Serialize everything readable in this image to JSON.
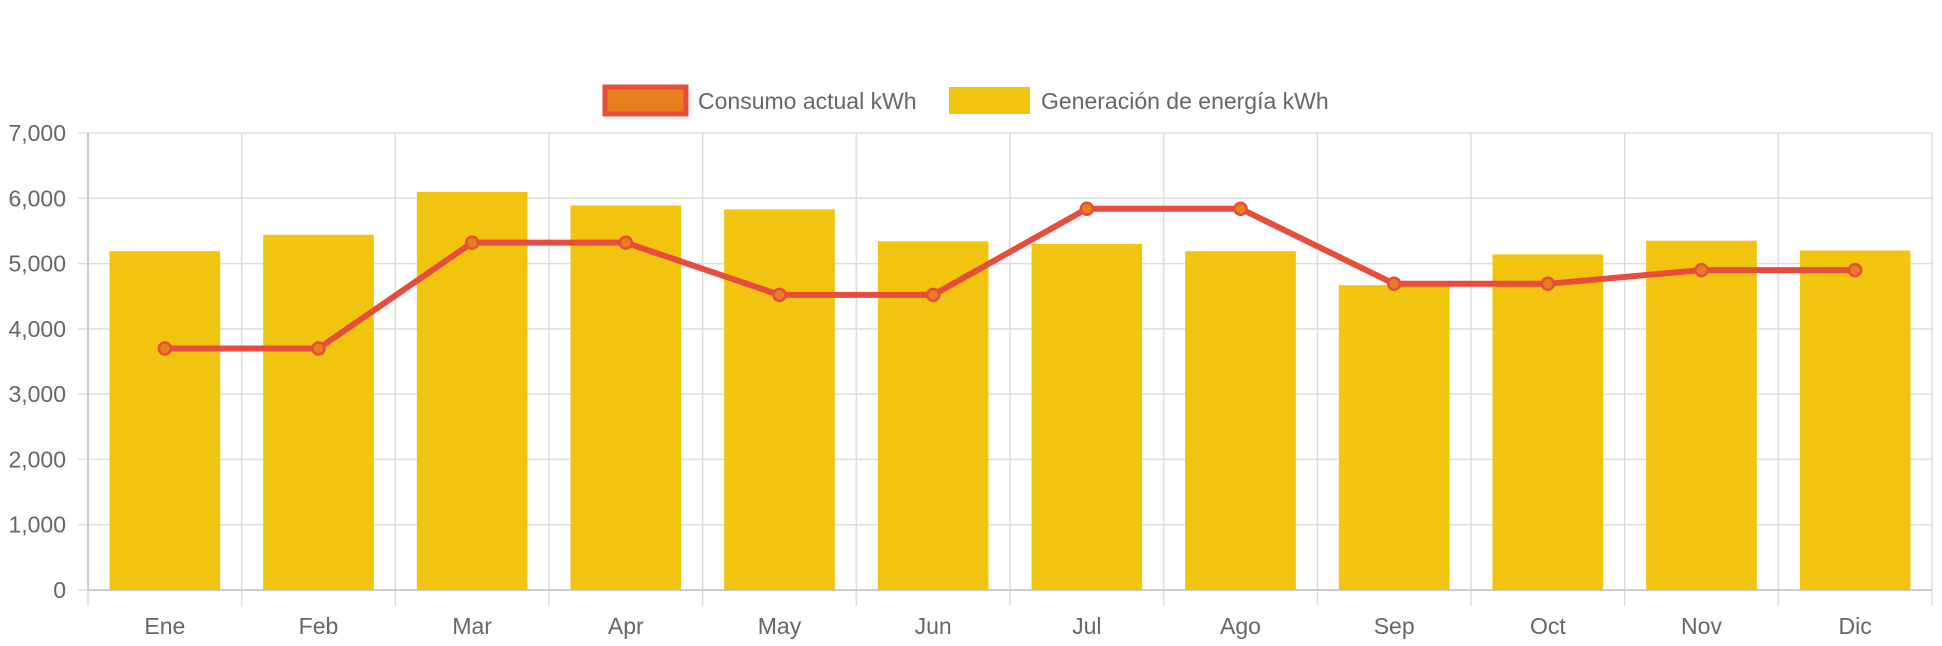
{
  "chart_data": {
    "type": "bar",
    "categories": [
      "Ene",
      "Feb",
      "Mar",
      "Apr",
      "May",
      "Jun",
      "Jul",
      "Ago",
      "Sep",
      "Oct",
      "Nov",
      "Dic"
    ],
    "series": [
      {
        "name": "Consumo actual kWh",
        "type": "line",
        "values": [
          3700,
          3700,
          5320,
          5320,
          4520,
          4520,
          5840,
          5840,
          4690,
          4690,
          4900,
          4900
        ],
        "color": "#e74c3c",
        "point_color": "#e67e22"
      },
      {
        "name": "Generación de energía kWh",
        "type": "bar",
        "values": [
          5190,
          5440,
          6100,
          5890,
          5830,
          5340,
          5300,
          5190,
          4670,
          5140,
          5350,
          5200
        ],
        "color": "#f1c40f"
      }
    ],
    "ylim": [
      0,
      7000
    ],
    "yticks": [
      "0",
      "1,000",
      "2,000",
      "3,000",
      "4,000",
      "5,000",
      "6,000",
      "7,000"
    ],
    "grid": true,
    "legend_position": "top"
  }
}
